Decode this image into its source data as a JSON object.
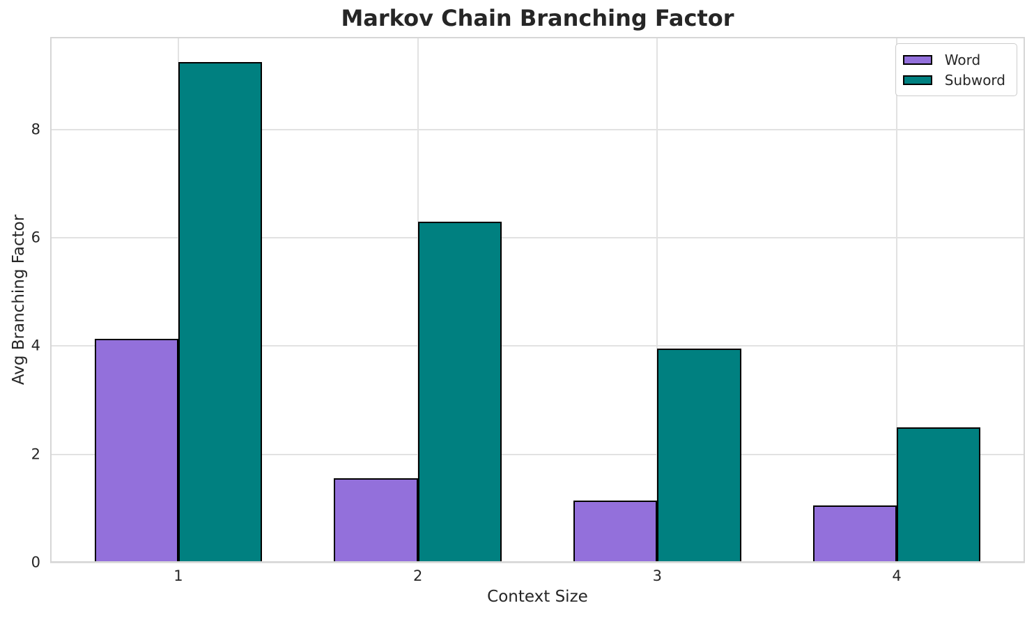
{
  "chart_data": {
    "type": "bar",
    "title": "Markov Chain Branching Factor",
    "xlabel": "Context Size",
    "ylabel": "Avg Branching Factor",
    "categories": [
      "1",
      "2",
      "3",
      "4"
    ],
    "series": [
      {
        "name": "Word",
        "color": "#9370DB",
        "values": [
          4.13,
          1.56,
          1.14,
          1.05
        ]
      },
      {
        "name": "Subword",
        "color": "#008080",
        "values": [
          9.25,
          6.3,
          3.95,
          2.5
        ]
      }
    ],
    "yticks": [
      0,
      2,
      4,
      6,
      8
    ],
    "ylim": [
      0,
      9.71
    ],
    "xlim": [
      0.465,
      4.535
    ],
    "bar_width_units": 0.35,
    "grid": true,
    "legend_position": "upper right"
  },
  "colors": {
    "background": "#ffffff",
    "text": "#262626",
    "grid": "#e2e2e2",
    "spine": "#d6d6d6",
    "bar_edge": "#000000",
    "legend_border": "#cccccc"
  }
}
